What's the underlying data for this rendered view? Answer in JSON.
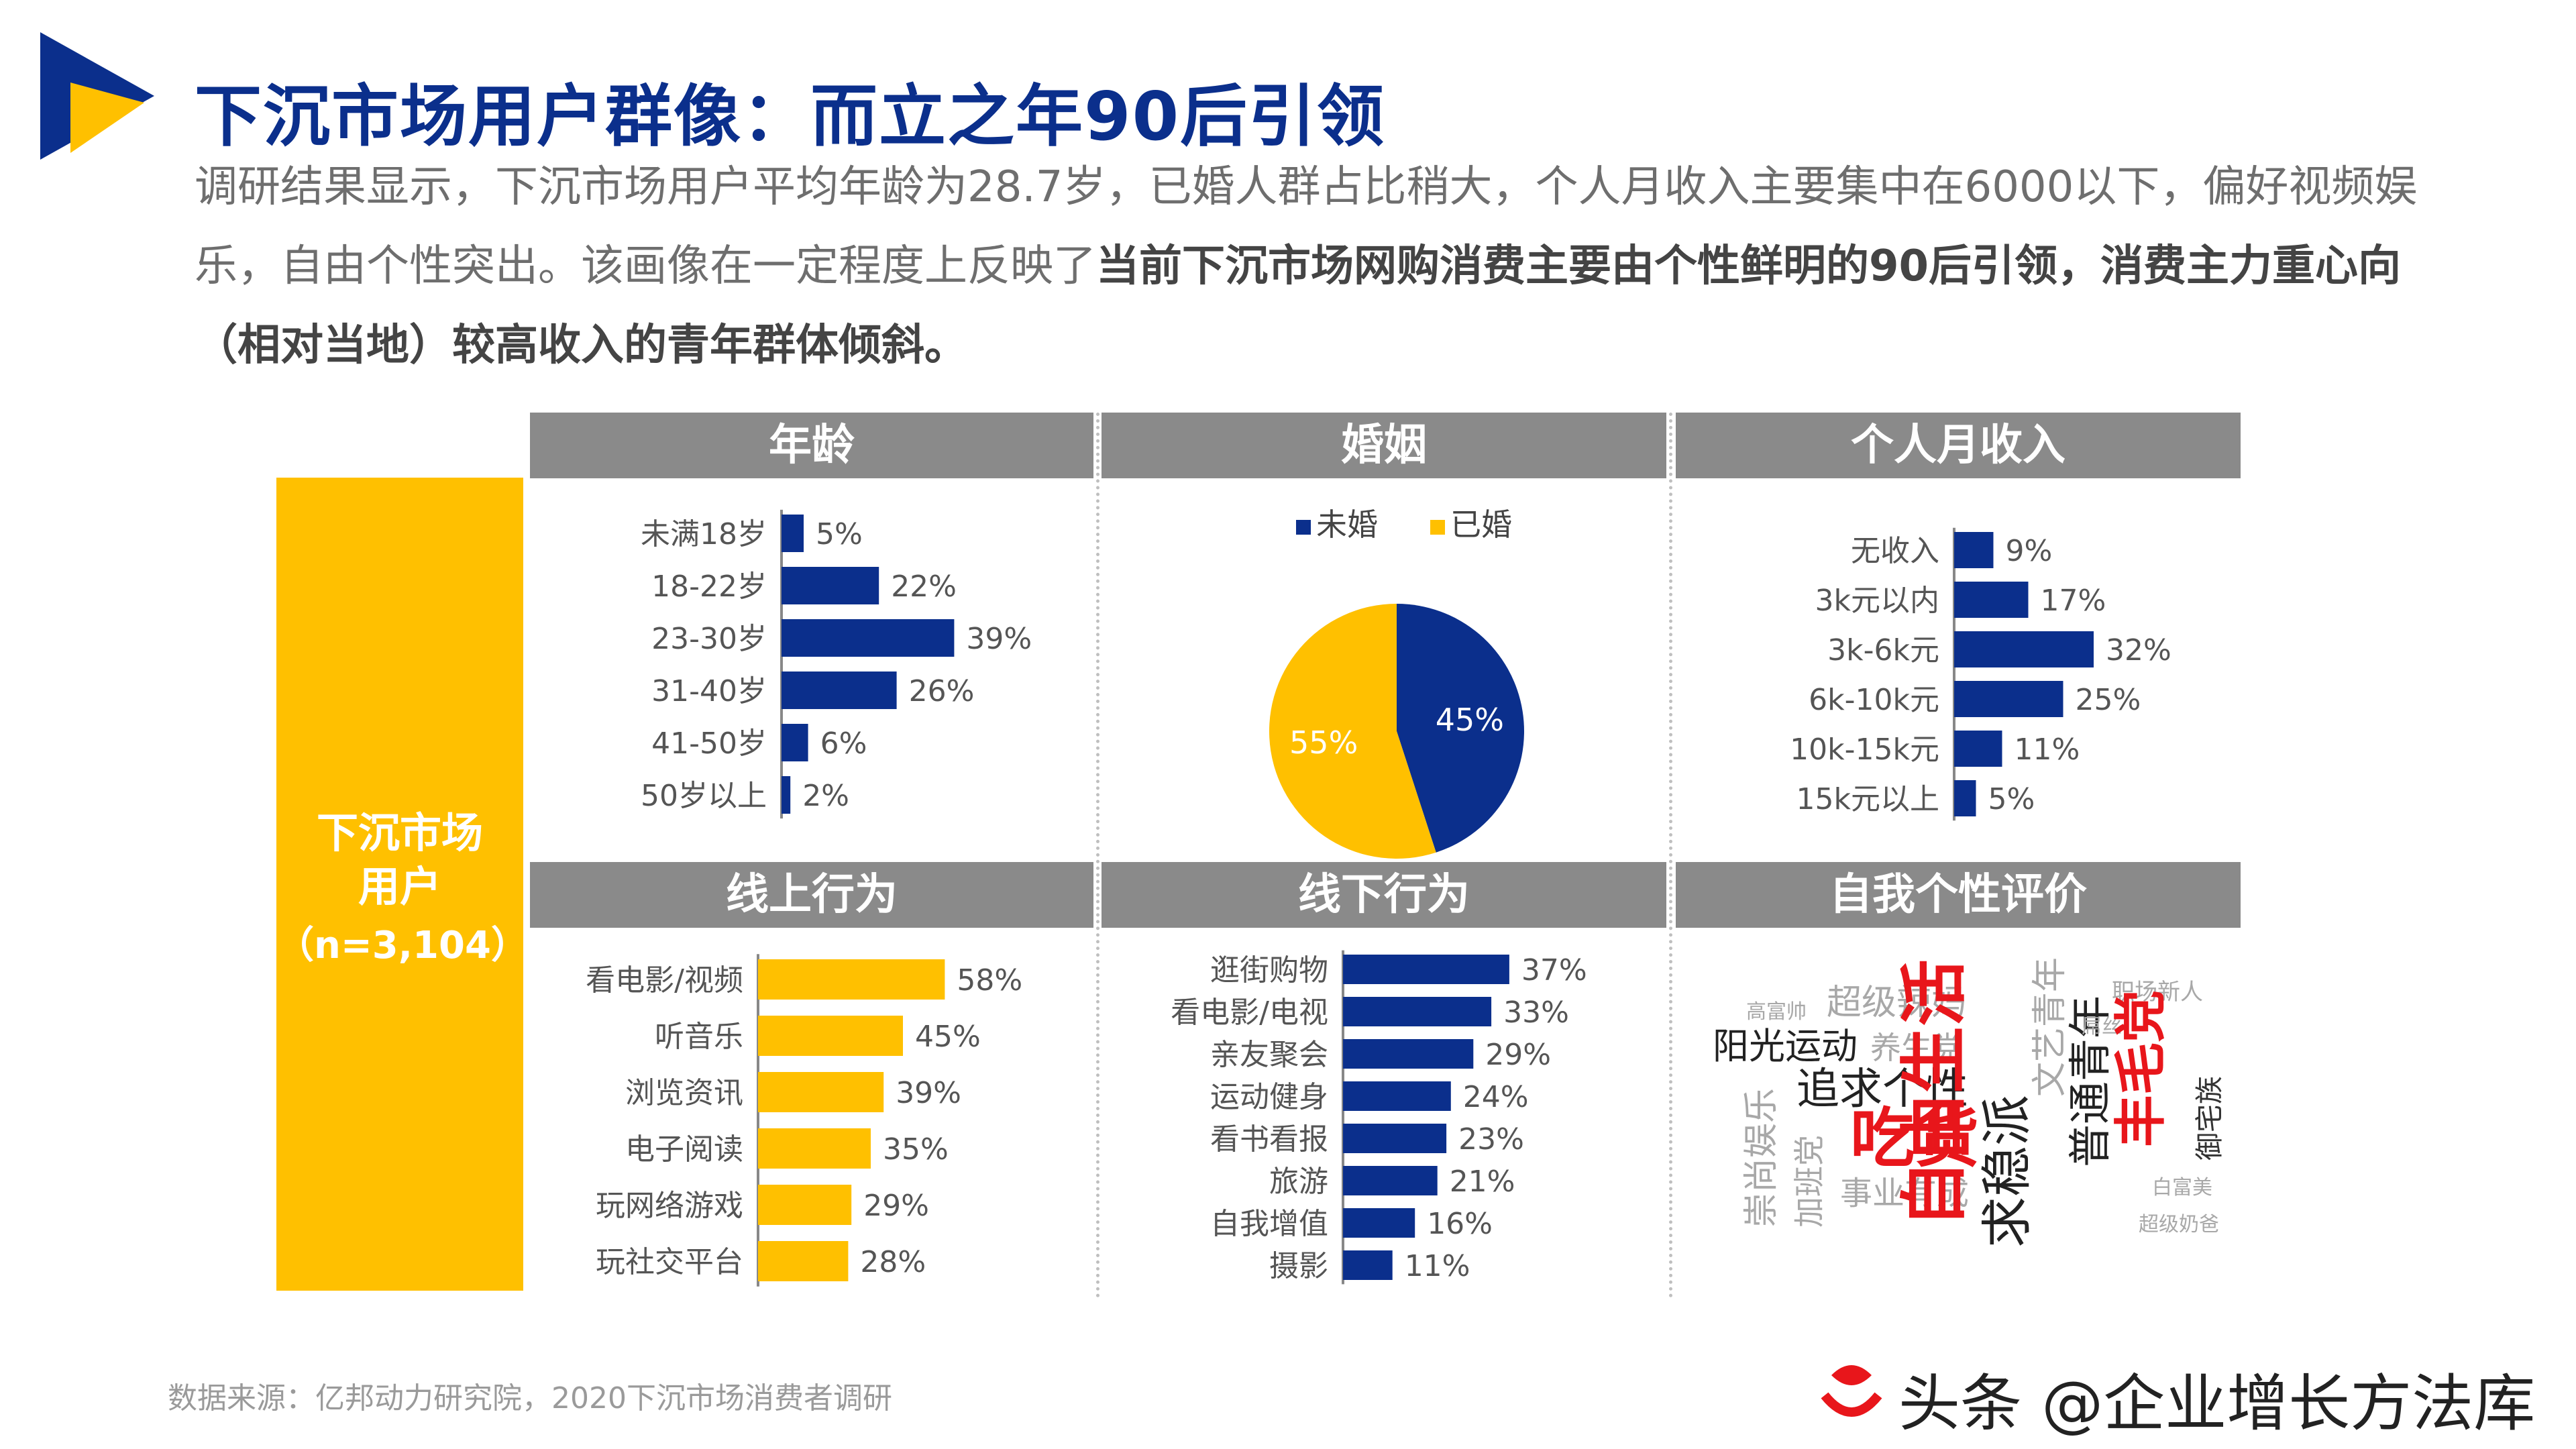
{
  "colors": {
    "navy": "#0b2f8c",
    "gold": "#ffc000",
    "header_gray": "#8a8a8a",
    "red": "#e8161b"
  },
  "header": {
    "title": "下沉市场用户群像：而立之年90后引领",
    "summary_plain": "调研结果显示，下沉市场用户平均年龄为28.7岁，已婚人群占比稍大，个人月收入主要集中在6000以下，偏好视频娱乐，自由个性突出。该画像在一定程度上反映了",
    "summary_bold": "当前下沉市场网购消费主要由个性鲜明的90后引领，消费主力重心向（相对当地）较高收入的青年群体倾斜。"
  },
  "user_box": {
    "line1": "下沉市场\n用户",
    "line2": "（n=3,104）"
  },
  "panels": {
    "age": "年龄",
    "marriage": "婚姻",
    "income": "个人月收入",
    "online": "线上行为",
    "offline": "线下行为",
    "personality": "自我个性评价"
  },
  "chart_data": [
    {
      "id": "age",
      "type": "bar",
      "orientation": "horizontal",
      "title": "年龄",
      "categories": [
        "未满18岁",
        "18-22岁",
        "23-30岁",
        "31-40岁",
        "41-50岁",
        "50岁以上"
      ],
      "values": [
        5,
        22,
        39,
        26,
        6,
        2
      ],
      "labels": [
        "5%",
        "22%",
        "39%",
        "26%",
        "6%",
        "2%"
      ],
      "unit": "%",
      "color": "#0b2f8c"
    },
    {
      "id": "marriage",
      "type": "pie",
      "title": "婚姻",
      "categories": [
        "未婚",
        "已婚"
      ],
      "values": [
        45,
        55
      ],
      "labels": [
        "45%",
        "55%"
      ],
      "colors": [
        "#0b2f8c",
        "#ffc000"
      ],
      "legend": "top"
    },
    {
      "id": "income",
      "type": "bar",
      "orientation": "horizontal",
      "title": "个人月收入",
      "categories": [
        "无收入",
        "3k元以内",
        "3k-6k元",
        "6k-10k元",
        "10k-15k元",
        "15k元以上"
      ],
      "values": [
        9,
        17,
        32,
        25,
        11,
        5
      ],
      "labels": [
        "9%",
        "17%",
        "32%",
        "25%",
        "11%",
        "5%"
      ],
      "unit": "%",
      "color": "#0b2f8c"
    },
    {
      "id": "online",
      "type": "bar",
      "orientation": "horizontal",
      "title": "线上行为",
      "categories": [
        "看电影/视频",
        "听音乐",
        "浏览资讯",
        "电子阅读",
        "玩网络游戏",
        "玩社交平台"
      ],
      "values": [
        58,
        45,
        39,
        35,
        29,
        28
      ],
      "labels": [
        "58%",
        "45%",
        "39%",
        "35%",
        "29%",
        "28%"
      ],
      "unit": "%",
      "color": "#ffc000"
    },
    {
      "id": "offline",
      "type": "bar",
      "orientation": "horizontal",
      "title": "线下行为",
      "categories": [
        "逛街购物",
        "看电影/电视",
        "亲友聚会",
        "运动健身",
        "看书看报",
        "旅游",
        "自我增值",
        "摄影"
      ],
      "values": [
        37,
        33,
        29,
        24,
        23,
        21,
        16,
        11
      ],
      "labels": [
        "37%",
        "33%",
        "29%",
        "24%",
        "23%",
        "21%",
        "16%",
        "11%"
      ],
      "unit": "%",
      "color": "#0b2f8c"
    }
  ],
  "word_cloud": [
    {
      "text": "高富帅",
      "color": "#a8a8a8",
      "size": 30
    },
    {
      "text": "超级辣妈",
      "color": "#a8a8a8",
      "size": 52
    },
    {
      "text": "阳光运动",
      "color": "#222222",
      "size": 54
    },
    {
      "text": "养生党",
      "color": "#a8a8a8",
      "size": 46
    },
    {
      "text": "追求个性",
      "color": "#222222",
      "size": 64
    },
    {
      "text": "吃货",
      "color": "#e8161b",
      "size": 96
    },
    {
      "text": "崇尚娱乐",
      "color": "#a8a8a8",
      "size": 52
    },
    {
      "text": "加班党",
      "color": "#a8a8a8",
      "size": 46
    },
    {
      "text": "事业有成",
      "color": "#a8a8a8",
      "size": 48
    },
    {
      "text": "自由生活",
      "color": "#e8161b",
      "size": 100
    },
    {
      "text": "求稳派",
      "color": "#222222",
      "size": 76
    },
    {
      "text": "文艺青年",
      "color": "#a8a8a8",
      "size": 52
    },
    {
      "text": "普通青年",
      "color": "#222222",
      "size": 64
    },
    {
      "text": "职场新人",
      "color": "#a8a8a8",
      "size": 34
    },
    {
      "text": "屌丝",
      "color": "#a8a8a8",
      "size": 30
    },
    {
      "text": "丰毛党",
      "color": "#e8161b",
      "size": 78
    },
    {
      "text": "御宅族",
      "color": "#333333",
      "size": 42
    },
    {
      "text": "白富美",
      "color": "#a8a8a8",
      "size": 30
    },
    {
      "text": "超级奶爸",
      "color": "#a8a8a8",
      "size": 30
    }
  ],
  "footer": {
    "source": "数据来源：亿邦动力研究院，2020下沉市场消费者调研"
  },
  "watermark": {
    "text": "头条 @企业增长方法库"
  }
}
